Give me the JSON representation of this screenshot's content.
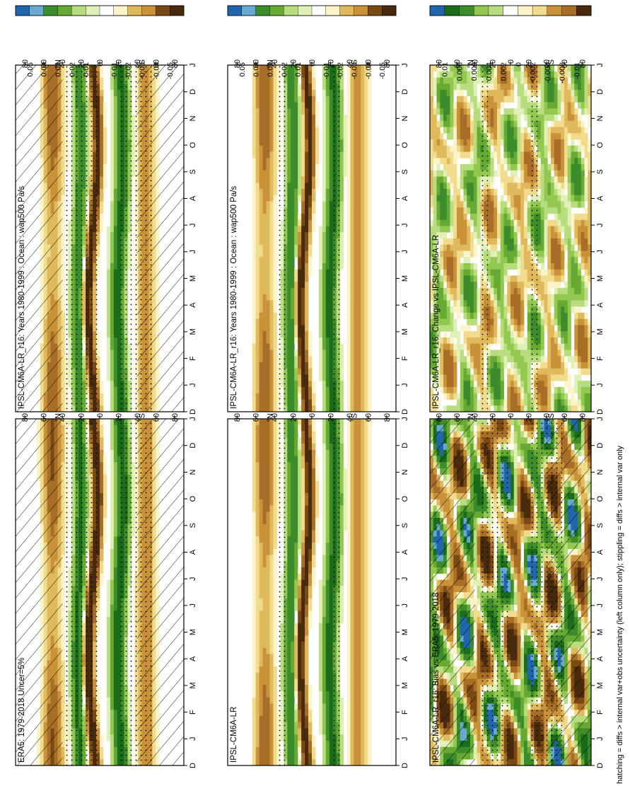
{
  "footnote": "hatching = diffs > internal var+obs uncertainty (left column only); stippling = diffs > internal var only",
  "months": [
    "D",
    "J",
    "F",
    "M",
    "A",
    "M",
    "J",
    "J",
    "A",
    "S",
    "O",
    "N",
    "D",
    "J"
  ],
  "lat_ticks": [
    "80",
    "60",
    "40",
    "20",
    "0",
    "20",
    "40",
    "60",
    "80"
  ],
  "lat_markers": {
    "north": "°N",
    "south": "°S"
  },
  "palette": [
    "#2166ac",
    "#67a9cf",
    "#1a6b1a",
    "#3d8c2b",
    "#66aa33",
    "#92c850",
    "#b8dd7e",
    "#dff0b8",
    "#ffffff",
    "#fcf3c8",
    "#f0dc8c",
    "#dfb95c",
    "#c99239",
    "#a86d26",
    "#7a4a15",
    "#4a2a0d"
  ],
  "chart_data": [
    {
      "type": "heatmap",
      "title": "IPSL-CM6A-LR_r16: Years 1980-1999 : Ocean : wap500 Pa/s",
      "colorbar": [
        "0.05",
        "0.04",
        "0.03",
        "0.02",
        "0.01",
        "0",
        "-0.01",
        "-0.02",
        "-0.03",
        "-0.04",
        "-0.05"
      ],
      "x": "month",
      "y": "latitude",
      "ylim": [
        -90,
        90
      ],
      "hatching": true,
      "stippling": true
    },
    {
      "type": "heatmap",
      "title": "IPSL-CM6A-LR_r16: Years 1980-1999 : Ocean : wap500 Pa/s",
      "colorbar": [
        "0.05",
        "0.04",
        "0.03",
        "0.02",
        "0.01",
        "0",
        "-0.01",
        "-0.02",
        "-0.03",
        "-0.04",
        "-0.05"
      ],
      "x": "month",
      "y": "latitude",
      "ylim": [
        -90,
        90
      ],
      "hatching": false,
      "stippling": true
    },
    {
      "type": "heatmap",
      "title": "ERA5: 1979-2018 Uncer=5%",
      "colorbar": [
        "0.05",
        "0.04",
        "0.03",
        "0.02",
        "0.01",
        "0",
        "-0.01",
        "-0.02",
        "-0.03",
        "-0.04",
        "-0.05"
      ],
      "x": "month",
      "y": "latitude",
      "ylim": [
        -90,
        90
      ],
      "hatching": true,
      "stippling": true
    },
    {
      "type": "heatmap",
      "title": "IPSL-CM6A-LR",
      "colorbar": [
        "0.05",
        "0.04",
        "0.03",
        "0.02",
        "0.01",
        "0",
        "-0.01",
        "-0.02",
        "-0.03",
        "-0.04",
        "-0.05"
      ],
      "x": "month",
      "y": "latitude",
      "ylim": [
        -90,
        90
      ],
      "hatching": false,
      "stippling": true
    },
    {
      "type": "heatmap",
      "title": "IPSL-CM6A-LR_r16: Bias vs ERA5: 1979-2018",
      "colorbar": [
        "0.01",
        "0.008",
        "0.006",
        "0.004",
        "0.002",
        "0",
        "-0.002",
        "-0.004",
        "-0.008",
        "-0.01"
      ],
      "x": "month",
      "y": "latitude",
      "ylim": [
        -90,
        90
      ],
      "hatching": true,
      "stippling": true
    },
    {
      "type": "heatmap",
      "title": "IPSL-CM6A-LR_r16: Change vs IPSL-CM6A-LR",
      "colorbar": [
        "0.01",
        "0.008",
        "0.006",
        "0.004",
        "0.002",
        "0",
        "-0.002",
        "-0.004",
        "-0.008",
        "-0.01"
      ],
      "x": "month",
      "y": "latitude",
      "ylim": [
        -90,
        90
      ],
      "hatching": false,
      "stippling": true
    }
  ]
}
